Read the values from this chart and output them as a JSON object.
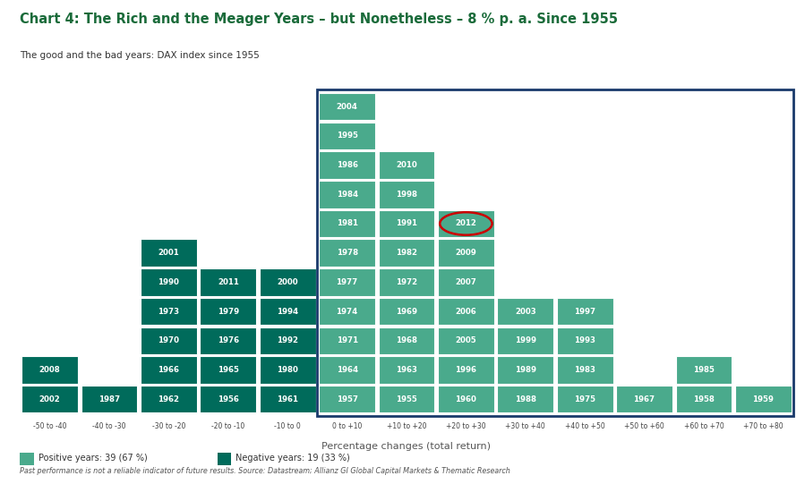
{
  "title": "Chart 4: The Rich and the Meager Years – but Nonetheless – 8 % p. a. Since 1955",
  "subtitle": "The good and the bad years: DAX index since 1955",
  "xlabel": "Percentage changes (total return)",
  "footer": "Past performance is not a reliable indicator of future results. Source: Datastream; Allianz GI Global Capital Markets & Thematic Research",
  "legend_positive": "Positive years: 39 (67 %)",
  "legend_negative": "Negative years: 19 (33 %)",
  "bins": [
    "-50 to -40",
    "-40 to -30",
    "-30 to -20",
    "-20 to -10",
    "-10 to 0",
    "0 to +10",
    "+10 to +20",
    "+20 to +30",
    "+30 to +40",
    "+40 to +50",
    "+50 to +60",
    "+60 to +70",
    "+70 to +80"
  ],
  "bin_data": {
    "-50 to -40": [
      "2002",
      "2008"
    ],
    "-40 to -30": [
      "1987"
    ],
    "-30 to -20": [
      "1962",
      "1966",
      "1970",
      "1973",
      "1990",
      "2001"
    ],
    "-20 to -10": [
      "1956",
      "1965",
      "1976",
      "1979",
      "2011"
    ],
    "-10 to 0": [
      "1961",
      "1980",
      "1992",
      "1994",
      "2000"
    ],
    "0 to +10": [
      "1957",
      "1964",
      "1971",
      "1974",
      "1977",
      "1978",
      "1981",
      "1984",
      "1986",
      "1995",
      "2004"
    ],
    "+10 to +20": [
      "1955",
      "1963",
      "1968",
      "1969",
      "1972",
      "1982",
      "1991",
      "1998",
      "2010"
    ],
    "+20 to +30": [
      "1960",
      "1996",
      "2005",
      "2006",
      "2007",
      "2009",
      "2012"
    ],
    "+30 to +40": [
      "1988",
      "1989",
      "1999",
      "2003"
    ],
    "+40 to +50": [
      "1975",
      "1983",
      "1993",
      "1997"
    ],
    "+50 to +60": [
      "1967"
    ],
    "+60 to +70": [
      "1958",
      "1985"
    ],
    "+70 to +80": [
      "1959"
    ]
  },
  "negative_color": "#006b5b",
  "positive_color": "#4aaa8c",
  "cell_text_color": "#ffffff",
  "title_color": "#1a6b3a",
  "subtitle_color": "#333333",
  "axis_label_color": "#555555",
  "footer_color": "#555555",
  "circle_year": "2012",
  "circle_color": "#cc0000",
  "box_border_color": "#1a3a6b",
  "background_color": "#ffffff"
}
